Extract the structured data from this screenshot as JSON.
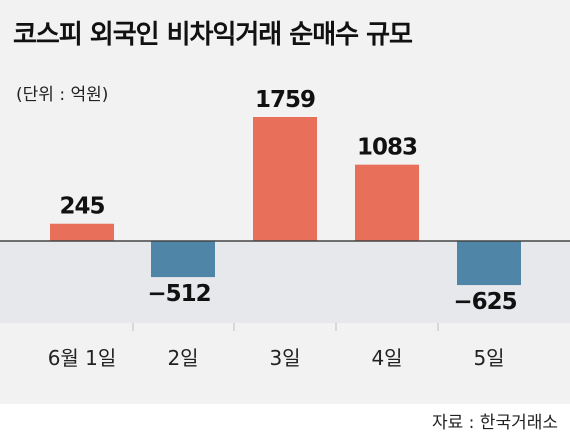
{
  "title": "코스피 외국인 비차익거래 순매수 규모",
  "unit_label": "(단위 : 억원)",
  "source": "자료 : 한국거래소",
  "colors": {
    "positive": "#e8705a",
    "negative": "#4f86a8",
    "baseline": "#444444",
    "negative_band": "#e7e8ec",
    "grid": "#bdbdbd"
  },
  "chart_data": {
    "type": "bar",
    "categories": [
      "6월 1일",
      "2일",
      "3일",
      "4일",
      "5일"
    ],
    "values": [
      245,
      -512,
      1759,
      1083,
      -625
    ],
    "value_labels": [
      "245",
      "−512",
      "1759",
      "1083",
      "−625"
    ],
    "title": "코스피 외국인 비차익거래 순매수 규모",
    "xlabel": "",
    "ylabel": "",
    "ylim": [
      -1010,
      2100
    ],
    "grid": false,
    "legend": "none"
  }
}
